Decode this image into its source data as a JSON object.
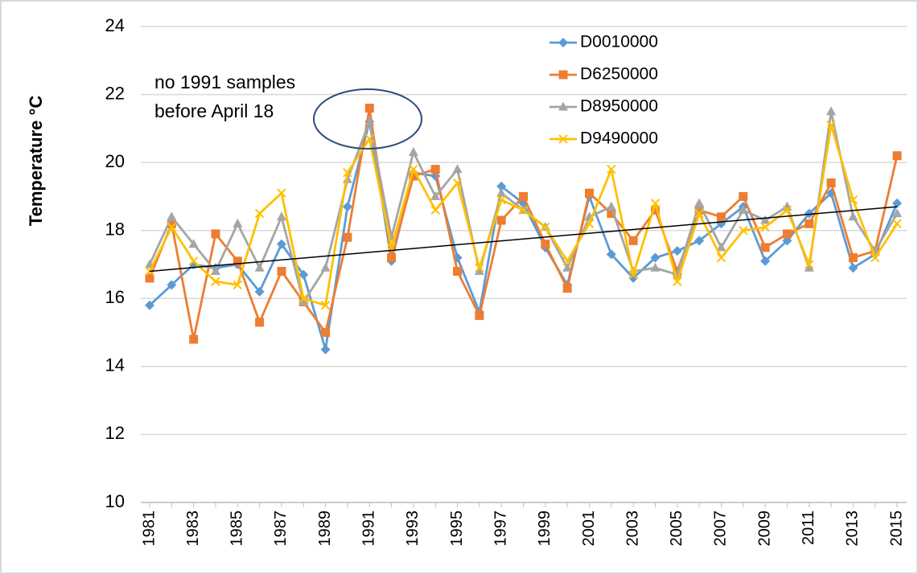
{
  "chart_data": {
    "type": "line",
    "y_label": "Temperature °C",
    "categories": [
      "1981",
      null,
      "1983",
      null,
      "1985",
      null,
      "1987",
      null,
      "1989",
      null,
      "1991",
      null,
      "1993",
      null,
      "1995",
      null,
      "1997",
      null,
      "1999",
      null,
      "2001",
      null,
      "2003",
      null,
      "2005",
      null,
      "2007",
      null,
      "2009",
      null,
      "2011",
      null,
      "2013",
      null,
      "2015"
    ],
    "ylim": [
      10,
      24
    ],
    "yticks": [
      10,
      12,
      14,
      16,
      18,
      20,
      22,
      24
    ],
    "grid": true,
    "legend": "upper right",
    "series": [
      {
        "name": "D0010000",
        "color": "#5b9bd5",
        "marker": "diamond",
        "values": [
          15.8,
          16.4,
          17.0,
          16.9,
          17.0,
          16.2,
          17.6,
          16.7,
          14.5,
          18.7,
          21.2,
          17.1,
          19.7,
          19.6,
          17.2,
          15.6,
          19.3,
          18.8,
          17.5,
          16.4,
          19.0,
          17.3,
          16.6,
          17.2,
          17.4,
          17.7,
          18.2,
          18.7,
          17.1,
          17.7,
          18.5,
          19.1,
          16.9,
          17.3,
          18.8
        ]
      },
      {
        "name": "D6250000",
        "color": "#ed7d31",
        "marker": "square",
        "values": [
          16.6,
          18.2,
          14.8,
          17.9,
          17.1,
          15.3,
          16.8,
          15.9,
          15.0,
          17.8,
          21.6,
          17.2,
          19.6,
          19.8,
          16.8,
          15.5,
          18.3,
          19.0,
          17.6,
          16.3,
          19.1,
          18.5,
          17.7,
          18.6,
          16.8,
          18.6,
          18.4,
          19.0,
          17.5,
          17.9,
          18.2,
          19.4,
          17.2,
          17.4,
          20.2
        ]
      },
      {
        "name": "D8950000",
        "color": "#a5a5a5",
        "marker": "triangle",
        "values": [
          17.0,
          18.4,
          17.6,
          16.8,
          18.2,
          16.9,
          18.4,
          15.9,
          16.9,
          19.5,
          21.2,
          17.8,
          20.3,
          19.0,
          19.8,
          16.8,
          19.1,
          18.6,
          18.1,
          16.9,
          18.4,
          18.7,
          16.8,
          16.9,
          16.7,
          18.8,
          17.5,
          18.6,
          18.3,
          18.7,
          16.9,
          21.5,
          18.4,
          17.4,
          18.5
        ]
      },
      {
        "name": "D9490000",
        "color": "#ffc000",
        "marker": "x",
        "values": [
          16.8,
          18.1,
          17.1,
          16.5,
          16.4,
          18.5,
          19.1,
          16.0,
          15.8,
          19.7,
          20.7,
          17.5,
          19.8,
          18.6,
          19.4,
          16.9,
          18.9,
          18.6,
          18.1,
          17.1,
          18.2,
          19.8,
          16.7,
          18.8,
          16.5,
          18.5,
          17.2,
          18.0,
          18.1,
          18.6,
          17.0,
          21.1,
          18.9,
          17.2,
          18.2
        ]
      }
    ],
    "trendline": {
      "start": 16.8,
      "end": 18.7,
      "color": "#000000"
    },
    "annotation": [
      "no 1991 samples",
      "before April 18"
    ]
  }
}
